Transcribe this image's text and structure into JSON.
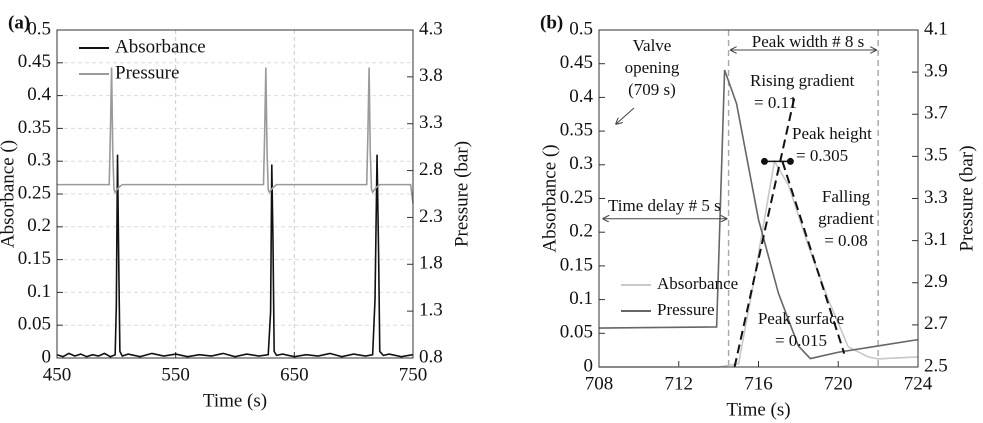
{
  "chart_data": [
    {
      "type": "line",
      "label": "(a)",
      "xlabel": "Time (s)",
      "ylabel": "Absorbance ()",
      "y2label": "Pressure (bar)",
      "xlim": [
        450,
        750
      ],
      "xticks": [
        450,
        550,
        650,
        750
      ],
      "ylim": [
        0,
        0.5
      ],
      "yticks": [
        0,
        0.05,
        0.1,
        0.15,
        0.2,
        0.25,
        0.3,
        0.35,
        0.4,
        0.45,
        0.5
      ],
      "y2lim": [
        0.8,
        4.3
      ],
      "y2ticks": [
        0.8,
        1.3,
        1.8,
        2.3,
        2.8,
        3.3,
        3.8,
        4.3
      ],
      "grid": true,
      "legend": "upper left",
      "series": [
        {
          "name": "Absorbance",
          "color": "#111111",
          "x": [
            450,
            455,
            460,
            465,
            470,
            475,
            480,
            485,
            490,
            495,
            499,
            500,
            501,
            502,
            503,
            505,
            510,
            520,
            530,
            540,
            550,
            560,
            570,
            580,
            590,
            600,
            610,
            620,
            628,
            630,
            631,
            632,
            633,
            635,
            640,
            650,
            660,
            670,
            680,
            690,
            700,
            710,
            716,
            718,
            719.7,
            721,
            722,
            725,
            730,
            740,
            750
          ],
          "values": [
            0.005,
            0.002,
            0.007,
            0.003,
            0.006,
            0.002,
            0.005,
            0.003,
            0.007,
            0.002,
            0.005,
            0.08,
            0.31,
            0.15,
            0.01,
            0.003,
            0.006,
            0.002,
            0.007,
            0.003,
            0.006,
            0.002,
            0.005,
            0.003,
            0.007,
            0.002,
            0.006,
            0.003,
            0.005,
            0.07,
            0.295,
            0.18,
            0.01,
            0.004,
            0.006,
            0.002,
            0.005,
            0.003,
            0.007,
            0.002,
            0.006,
            0.003,
            0.005,
            0.09,
            0.31,
            0.16,
            0.01,
            0.004,
            0.006,
            0.002,
            0.005
          ]
        },
        {
          "name": "Pressure",
          "color": "#9a9a9a",
          "axis": "y2",
          "x": [
            450,
            494,
            495,
            496,
            497,
            498,
            499,
            502,
            505,
            624,
            625,
            626,
            627,
            628,
            629,
            632,
            635,
            711,
            712,
            713,
            714,
            715,
            716,
            719,
            722,
            748,
            750
          ],
          "values": [
            2.65,
            2.65,
            3.2,
            3.9,
            3.0,
            2.6,
            2.57,
            2.62,
            2.65,
            2.65,
            3.2,
            3.9,
            3.0,
            2.6,
            2.57,
            2.62,
            2.65,
            2.65,
            3.2,
            3.9,
            3.0,
            2.6,
            2.57,
            2.62,
            2.65,
            2.65,
            2.45
          ]
        }
      ]
    },
    {
      "type": "line",
      "label": "(b)",
      "xlabel": "Time (s)",
      "ylabel": "Absorbance ()",
      "y2label": "Pressure (bar)",
      "xlim": [
        708,
        724
      ],
      "xticks": [
        708,
        712,
        716,
        720,
        724
      ],
      "ylim": [
        0,
        0.5
      ],
      "yticks": [
        0,
        0.05,
        0.1,
        0.15,
        0.2,
        0.25,
        0.3,
        0.35,
        0.4,
        0.45,
        0.5
      ],
      "y2lim": [
        2.5,
        4.1
      ],
      "y2ticks": [
        2.5,
        2.7,
        2.9,
        3.1,
        3.3,
        3.5,
        3.7,
        3.9,
        4.1
      ],
      "grid": false,
      "legend": "lower left",
      "series": [
        {
          "name": "Absorbance",
          "color": "#c8c8c8",
          "x": [
            708,
            714,
            715,
            715.6,
            716.8,
            717.5,
            718.5,
            719.5,
            720.5,
            721.5,
            722,
            724
          ],
          "values": [
            0.0,
            0.0,
            0.005,
            0.1,
            0.305,
            0.27,
            0.18,
            0.1,
            0.03,
            0.015,
            0.012,
            0.015
          ]
        },
        {
          "name": "Pressure",
          "color": "#666666",
          "axis": "y2",
          "x": [
            708,
            713.9,
            714.3,
            714.9,
            716,
            717,
            718,
            718.6,
            720,
            722,
            724
          ],
          "values": [
            2.685,
            2.69,
            3.91,
            3.75,
            3.2,
            2.85,
            2.6,
            2.54,
            2.57,
            2.6,
            2.63
          ]
        }
      ],
      "vlines": [
        714.5,
        722
      ],
      "guides": [
        {
          "x": [
            714.8,
            717.8
          ],
          "y": [
            0,
            0.4
          ]
        },
        {
          "x": [
            717.2,
            720.3
          ],
          "y": [
            0.305,
            0.02
          ]
        }
      ],
      "peak_marker": {
        "x": [
          716.3,
          717.6
        ],
        "y": [
          0.305,
          0.305
        ]
      },
      "annotations": [
        [
          "Valve",
          "opening",
          "(709 s)"
        ],
        [
          "Peak width # 8 s"
        ],
        [
          "Rising gradient",
          "= 0.11"
        ],
        [
          "Peak height",
          "= 0.305"
        ],
        [
          "Falling",
          "gradient",
          "= 0.08"
        ],
        [
          "Time delay # 5 s"
        ],
        [
          "Peak surface",
          "= 0.015"
        ]
      ]
    }
  ]
}
